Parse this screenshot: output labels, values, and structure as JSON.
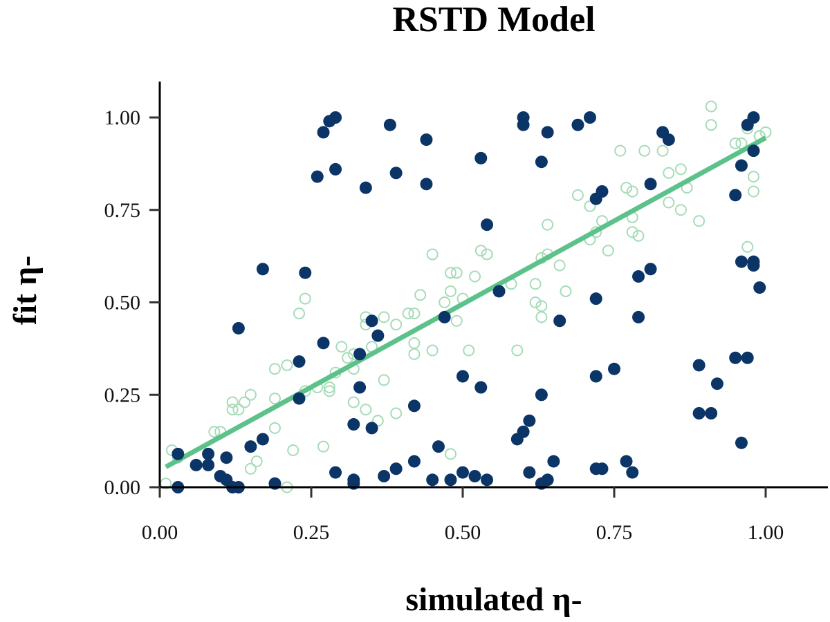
{
  "chart_data": {
    "type": "scatter",
    "title": "RSTD Model",
    "xlabel": "simulated η-",
    "ylabel": "fit η-",
    "xlim": [
      0.0,
      1.09
    ],
    "ylim": [
      0.0,
      1.1
    ],
    "xticks": [
      0.0,
      0.25,
      0.5,
      0.75,
      1.0
    ],
    "yticks": [
      0.0,
      0.25,
      0.5,
      0.75,
      1.0
    ],
    "xtick_labels": [
      "0.00",
      "0.25",
      "0.50",
      "0.75",
      "1.00"
    ],
    "ytick_labels": [
      "0.00",
      "0.25",
      "0.50",
      "0.75",
      "1.00"
    ],
    "grid": false,
    "legend": "none",
    "colors": {
      "filled": "#0b3566",
      "open": "#a6dcb8",
      "fit_line": "#5cc28a"
    },
    "fit_line": {
      "x": [
        0.01,
        1.0
      ],
      "y": [
        0.055,
        0.945
      ]
    },
    "series": [
      {
        "marker": "filled-circle",
        "points": [
          [
            0.03,
            0.09
          ],
          [
            0.03,
            0.0
          ],
          [
            0.06,
            0.06
          ],
          [
            0.08,
            0.09
          ],
          [
            0.08,
            0.06
          ],
          [
            0.1,
            0.03
          ],
          [
            0.11,
            0.02
          ],
          [
            0.11,
            0.08
          ],
          [
            0.12,
            0.0
          ],
          [
            0.13,
            0.0
          ],
          [
            0.13,
            0.43
          ],
          [
            0.15,
            0.11
          ],
          [
            0.17,
            0.13
          ],
          [
            0.17,
            0.59
          ],
          [
            0.19,
            0.01
          ],
          [
            0.23,
            0.24
          ],
          [
            0.23,
            0.34
          ],
          [
            0.24,
            0.58
          ],
          [
            0.26,
            0.84
          ],
          [
            0.27,
            0.39
          ],
          [
            0.27,
            0.96
          ],
          [
            0.28,
            0.99
          ],
          [
            0.29,
            1.0
          ],
          [
            0.29,
            0.86
          ],
          [
            0.29,
            0.04
          ],
          [
            0.32,
            0.17
          ],
          [
            0.32,
            0.02
          ],
          [
            0.32,
            0.01
          ],
          [
            0.33,
            0.27
          ],
          [
            0.33,
            0.36
          ],
          [
            0.34,
            0.81
          ],
          [
            0.35,
            0.16
          ],
          [
            0.35,
            0.45
          ],
          [
            0.36,
            0.41
          ],
          [
            0.37,
            0.03
          ],
          [
            0.38,
            0.98
          ],
          [
            0.39,
            0.85
          ],
          [
            0.39,
            0.05
          ],
          [
            0.42,
            0.22
          ],
          [
            0.42,
            0.07
          ],
          [
            0.44,
            0.82
          ],
          [
            0.44,
            0.94
          ],
          [
            0.45,
            0.02
          ],
          [
            0.46,
            0.11
          ],
          [
            0.47,
            0.46
          ],
          [
            0.48,
            0.02
          ],
          [
            0.5,
            0.3
          ],
          [
            0.5,
            0.04
          ],
          [
            0.52,
            0.03
          ],
          [
            0.53,
            0.89
          ],
          [
            0.53,
            0.27
          ],
          [
            0.54,
            0.71
          ],
          [
            0.54,
            0.02
          ],
          [
            0.56,
            0.53
          ],
          [
            0.59,
            0.13
          ],
          [
            0.6,
            1.0
          ],
          [
            0.6,
            0.98
          ],
          [
            0.6,
            0.15
          ],
          [
            0.61,
            0.18
          ],
          [
            0.61,
            0.04
          ],
          [
            0.63,
            0.88
          ],
          [
            0.63,
            0.25
          ],
          [
            0.63,
            0.01
          ],
          [
            0.64,
            0.96
          ],
          [
            0.64,
            0.02
          ],
          [
            0.65,
            0.07
          ],
          [
            0.66,
            0.45
          ],
          [
            0.69,
            0.98
          ],
          [
            0.71,
            1.0
          ],
          [
            0.72,
            0.78
          ],
          [
            0.72,
            0.3
          ],
          [
            0.72,
            0.05
          ],
          [
            0.72,
            0.51
          ],
          [
            0.73,
            0.8
          ],
          [
            0.73,
            0.05
          ],
          [
            0.75,
            0.32
          ],
          [
            0.77,
            0.07
          ],
          [
            0.78,
            0.04
          ],
          [
            0.79,
            0.57
          ],
          [
            0.79,
            0.46
          ],
          [
            0.81,
            0.59
          ],
          [
            0.81,
            0.82
          ],
          [
            0.83,
            0.96
          ],
          [
            0.84,
            0.94
          ],
          [
            0.89,
            0.33
          ],
          [
            0.89,
            0.2
          ],
          [
            0.91,
            0.2
          ],
          [
            0.92,
            0.28
          ],
          [
            0.95,
            0.79
          ],
          [
            0.95,
            0.35
          ],
          [
            0.96,
            0.12
          ],
          [
            0.96,
            0.61
          ],
          [
            0.96,
            0.87
          ],
          [
            0.97,
            0.35
          ],
          [
            0.97,
            0.98
          ],
          [
            0.98,
            0.91
          ],
          [
            0.98,
            1.0
          ],
          [
            0.98,
            0.61
          ],
          [
            0.98,
            0.6
          ],
          [
            0.99,
            0.54
          ]
        ]
      },
      {
        "marker": "open-circle",
        "points": [
          [
            0.01,
            0.01
          ],
          [
            0.02,
            0.1
          ],
          [
            0.03,
            0.08
          ],
          [
            0.09,
            0.15
          ],
          [
            0.1,
            0.15
          ],
          [
            0.12,
            0.23
          ],
          [
            0.12,
            0.21
          ],
          [
            0.13,
            0.21
          ],
          [
            0.14,
            0.23
          ],
          [
            0.15,
            0.25
          ],
          [
            0.16,
            0.07
          ],
          [
            0.15,
            0.05
          ],
          [
            0.19,
            0.32
          ],
          [
            0.19,
            0.24
          ],
          [
            0.21,
            0.33
          ],
          [
            0.19,
            0.16
          ],
          [
            0.21,
            0.0
          ],
          [
            0.23,
            0.47
          ],
          [
            0.24,
            0.51
          ],
          [
            0.24,
            0.26
          ],
          [
            0.26,
            0.27
          ],
          [
            0.28,
            0.26
          ],
          [
            0.28,
            0.27
          ],
          [
            0.29,
            0.31
          ],
          [
            0.3,
            0.38
          ],
          [
            0.31,
            0.35
          ],
          [
            0.32,
            0.36
          ],
          [
            0.32,
            0.32
          ],
          [
            0.32,
            0.23
          ],
          [
            0.34,
            0.21
          ],
          [
            0.34,
            0.46
          ],
          [
            0.35,
            0.38
          ],
          [
            0.36,
            0.18
          ],
          [
            0.37,
            0.29
          ],
          [
            0.37,
            0.46
          ],
          [
            0.39,
            0.44
          ],
          [
            0.39,
            0.2
          ],
          [
            0.41,
            0.47
          ],
          [
            0.42,
            0.47
          ],
          [
            0.42,
            0.39
          ],
          [
            0.42,
            0.36
          ],
          [
            0.45,
            0.37
          ],
          [
            0.45,
            0.63
          ],
          [
            0.47,
            0.5
          ],
          [
            0.48,
            0.58
          ],
          [
            0.48,
            0.53
          ],
          [
            0.49,
            0.58
          ],
          [
            0.49,
            0.45
          ],
          [
            0.51,
            0.37
          ],
          [
            0.52,
            0.57
          ],
          [
            0.53,
            0.64
          ],
          [
            0.54,
            0.63
          ],
          [
            0.59,
            0.37
          ],
          [
            0.62,
            0.5
          ],
          [
            0.63,
            0.46
          ],
          [
            0.63,
            0.49
          ],
          [
            0.64,
            0.63
          ],
          [
            0.63,
            0.62
          ],
          [
            0.64,
            0.71
          ],
          [
            0.67,
            0.53
          ],
          [
            0.69,
            0.79
          ],
          [
            0.71,
            0.76
          ],
          [
            0.71,
            0.67
          ],
          [
            0.72,
            0.69
          ],
          [
            0.73,
            0.72
          ],
          [
            0.74,
            0.64
          ],
          [
            0.76,
            0.91
          ],
          [
            0.77,
            0.81
          ],
          [
            0.78,
            0.8
          ],
          [
            0.78,
            0.73
          ],
          [
            0.78,
            0.69
          ],
          [
            0.79,
            0.68
          ],
          [
            0.8,
            0.91
          ],
          [
            0.83,
            0.91
          ],
          [
            0.84,
            0.85
          ],
          [
            0.84,
            0.77
          ],
          [
            0.86,
            0.86
          ],
          [
            0.86,
            0.75
          ],
          [
            0.87,
            0.81
          ],
          [
            0.89,
            0.72
          ],
          [
            0.91,
            0.98
          ],
          [
            0.91,
            1.03
          ],
          [
            0.95,
            0.93
          ],
          [
            0.97,
            0.97
          ],
          [
            0.97,
            0.65
          ],
          [
            0.98,
            0.84
          ],
          [
            0.98,
            0.8
          ],
          [
            0.99,
            0.95
          ],
          [
            0.99,
            0.95
          ],
          [
            1.0,
            0.96
          ],
          [
            0.96,
            0.93
          ],
          [
            0.48,
            0.09
          ],
          [
            0.27,
            0.11
          ],
          [
            0.22,
            0.1
          ],
          [
            0.34,
            0.44
          ],
          [
            0.5,
            0.51
          ],
          [
            0.43,
            0.52
          ],
          [
            0.58,
            0.55
          ],
          [
            0.62,
            0.55
          ],
          [
            0.66,
            0.6
          ]
        ]
      }
    ]
  }
}
